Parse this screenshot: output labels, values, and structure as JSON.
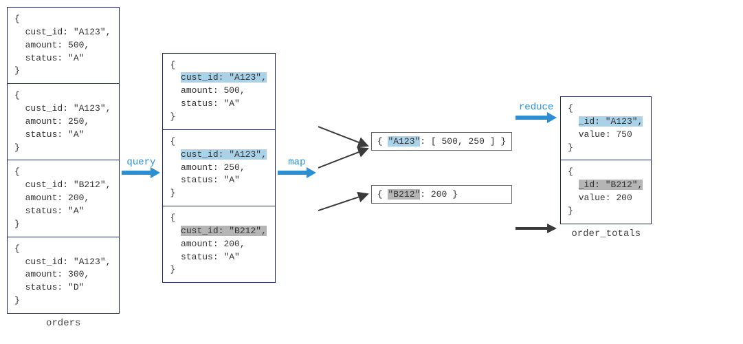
{
  "colors": {
    "border": "#1a2a5c",
    "arrow_blue": "#2b8fd6",
    "arrow_dark": "#3a3a3a",
    "highlight_blue": "#a9d1e8",
    "highlight_grey": "#b5b5b5",
    "text": "#333333"
  },
  "labels": {
    "orders": "orders",
    "order_totals": "order_totals",
    "query": "query",
    "map": "map",
    "reduce": "reduce"
  },
  "orders": [
    {
      "cust_id": "A123",
      "amount": 500,
      "status": "A"
    },
    {
      "cust_id": "A123",
      "amount": 250,
      "status": "A"
    },
    {
      "cust_id": "B212",
      "amount": 200,
      "status": "A"
    },
    {
      "cust_id": "A123",
      "amount": 300,
      "status": "D"
    }
  ],
  "queried": [
    {
      "cust_id": "A123",
      "amount": 500,
      "status": "A",
      "highlight": "blue"
    },
    {
      "cust_id": "A123",
      "amount": 250,
      "status": "A",
      "highlight": "blue"
    },
    {
      "cust_id": "B212",
      "amount": 200,
      "status": "A",
      "highlight": "grey"
    }
  ],
  "grouped": [
    {
      "key": "A123",
      "values": "[ 500, 250 ]",
      "highlight": "blue"
    },
    {
      "key": "B212",
      "values": "200",
      "highlight": "grey"
    }
  ],
  "order_totals": [
    {
      "_id": "A123",
      "value": 750,
      "highlight": "blue"
    },
    {
      "_id": "B212",
      "value": 200,
      "highlight": "grey"
    }
  ],
  "text": {
    "brace_open": "{",
    "brace_close": "}",
    "cust_id_key": "cust_id:",
    "amount_key": "amount:",
    "status_key": "status:",
    "id_key": "_id:",
    "value_key": "value:",
    "colon": ":"
  }
}
